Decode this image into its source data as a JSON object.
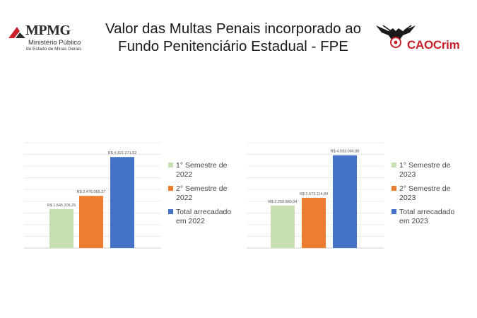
{
  "header": {
    "title_line1": "Valor das Multas Penais incorporado ao",
    "title_line2": "Fundo Penitenciário Estadual - FPE",
    "left_logo": {
      "name": "MPMG",
      "line1": "Ministério Público",
      "line2": "do Estado de Minas Gerais",
      "icon": "mpmg-logo-icon"
    },
    "right_logo": {
      "name": "CAOCrim",
      "icon": "eagle-emblem-icon",
      "color": "#c8202a"
    }
  },
  "colors": {
    "first_semester": "#c6e0b4",
    "second_semester": "#ed7d31",
    "total": "#4472c4"
  },
  "chart_data": [
    {
      "type": "bar",
      "categories": [
        "1° Semestre de 2022",
        "2° Semestre de 2022",
        "Total arrecadado em 2022"
      ],
      "values": [
        1845206.25,
        2476065.27,
        4321271.52
      ],
      "data_labels": [
        "R$ 1.845.206,25",
        "R$ 2.476.065,27",
        "R$ 4.321.271,52"
      ],
      "legend": [
        "1° Semestre de 2022",
        "2° Semestre de 2022",
        "Total arrecadado em 2022"
      ],
      "legend_placement": "right",
      "ylim": [
        0,
        5000000
      ],
      "grid": true
    },
    {
      "type": "bar",
      "categories": [
        "1° Semestre de 2023",
        "2° Semestre de 2023",
        "Total arrecadado em 2023"
      ],
      "values": [
        2259980.04,
        2673114.84,
        4933094.88
      ],
      "data_labels": [
        "R$ 2.259.980,04",
        "R$ 2.673.114,84",
        "R$ 4.933.094,88"
      ],
      "legend": [
        "1° Semestre de 2023",
        "2° Semestre de 2023",
        "Total arrecadado em 2023"
      ],
      "legend_placement": "right",
      "ylim": [
        0,
        5600000
      ],
      "grid": true
    }
  ]
}
